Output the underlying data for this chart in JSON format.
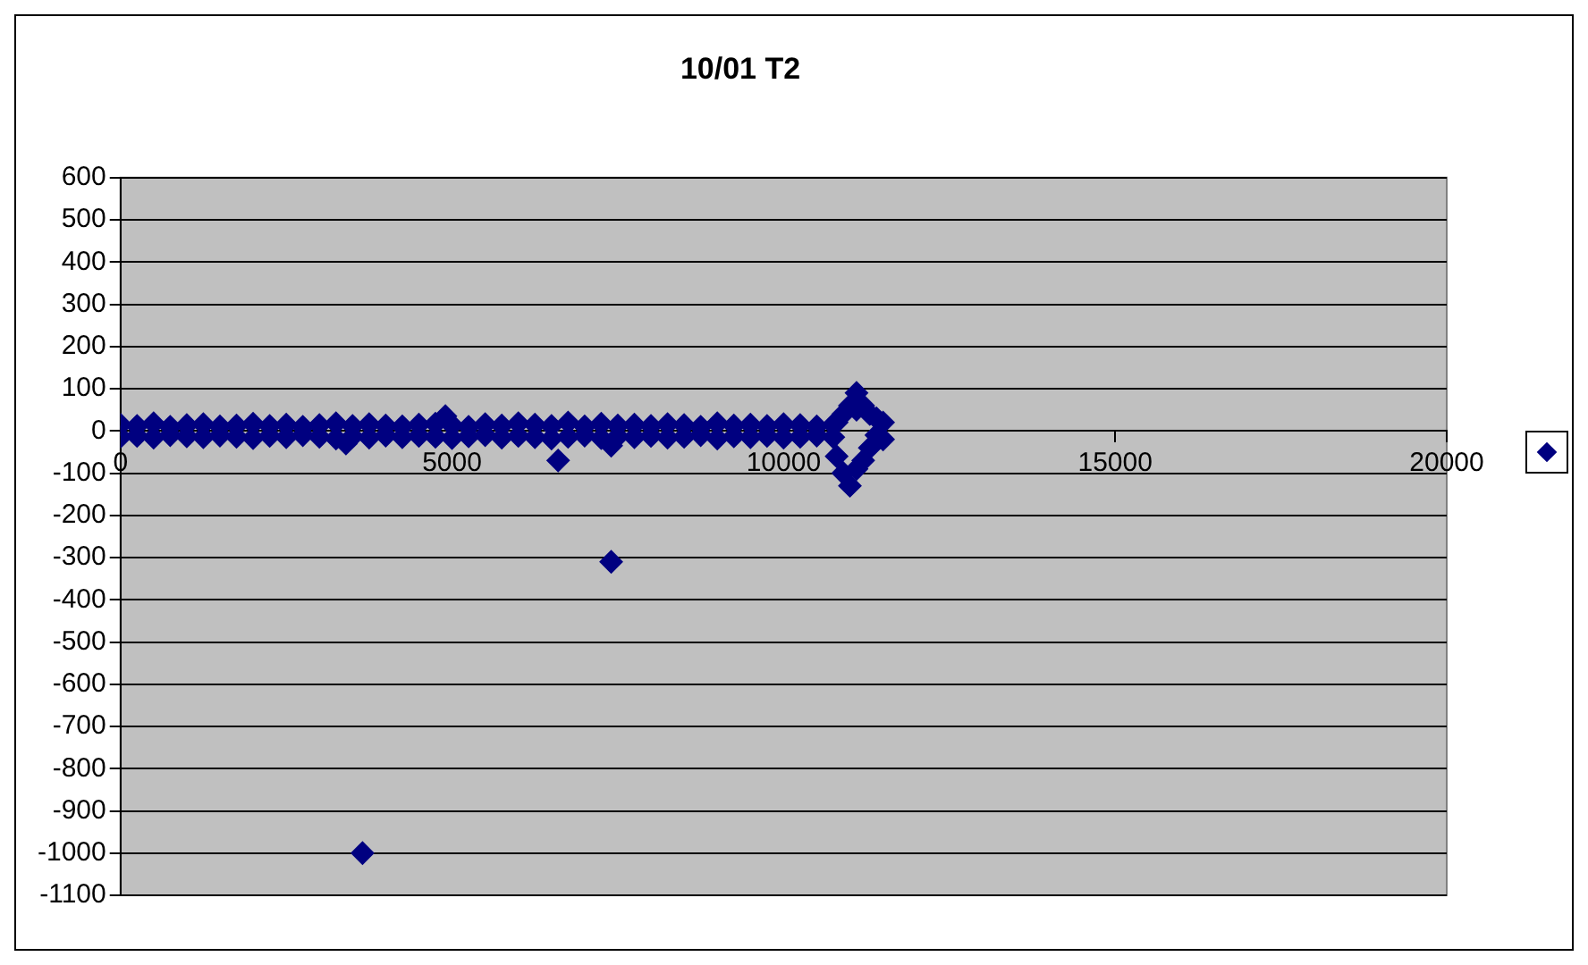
{
  "chart_data": {
    "type": "scatter",
    "title": "10/01 T2",
    "xlim": [
      0,
      20000
    ],
    "xticks": [
      0,
      5000,
      10000,
      15000,
      20000
    ],
    "ylim": [
      -1100,
      600
    ],
    "yticks": [
      -1100,
      -1000,
      -900,
      -800,
      -700,
      -600,
      -500,
      -400,
      -300,
      -200,
      -100,
      0,
      100,
      200,
      300,
      400,
      500,
      600
    ],
    "grid": "y",
    "marker": "diamond",
    "series": [
      {
        "color": "#000080",
        "x": [
          0,
          250,
          500,
          750,
          1000,
          1250,
          1500,
          1750,
          2000,
          2250,
          2500,
          2750,
          3000,
          3250,
          3500,
          3750,
          4000,
          4250,
          4500,
          4750,
          4900,
          5000,
          5250,
          5500,
          5750,
          6000,
          6250,
          6500,
          6750,
          7000,
          7250,
          7500,
          7750,
          8000,
          8250,
          8500,
          8750,
          9000,
          9250,
          9500,
          9750,
          10000,
          10250,
          10500,
          10750,
          0,
          250,
          500,
          750,
          1000,
          1250,
          1500,
          1750,
          2000,
          2250,
          2500,
          2750,
          3000,
          3250,
          3400,
          3500,
          3750,
          4000,
          4250,
          4500,
          4750,
          5000,
          5250,
          5500,
          5750,
          6000,
          6250,
          6500,
          6750,
          7000,
          7250,
          7400,
          7500,
          7750,
          8000,
          8250,
          8500,
          8750,
          9000,
          9250,
          9500,
          9750,
          10000,
          10250,
          10500,
          10750,
          10800,
          10900,
          11000,
          11100,
          11100,
          11200,
          11300,
          11400,
          11500,
          11500,
          11300,
          11200,
          10900,
          11000,
          11400,
          10800,
          11100,
          3650,
          7400,
          6600
        ],
        "values": [
          15,
          12,
          18,
          10,
          14,
          16,
          11,
          13,
          17,
          12,
          15,
          10,
          14,
          18,
          12,
          16,
          13,
          11,
          15,
          17,
          35,
          14,
          10,
          16,
          13,
          18,
          15,
          12,
          20,
          11,
          17,
          13,
          15,
          12,
          16,
          14,
          10,
          18,
          13,
          15,
          12,
          16,
          14,
          11,
          15,
          -14,
          -12,
          -16,
          -10,
          -13,
          -15,
          -11,
          -14,
          -17,
          -12,
          -15,
          -10,
          -14,
          -18,
          -30,
          -13,
          -16,
          -11,
          -15,
          -12,
          -14,
          -17,
          -13,
          -10,
          -16,
          -12,
          -15,
          -18,
          -14,
          -11,
          -17,
          -35,
          -13,
          -15,
          -12,
          -16,
          -14,
          -10,
          -18,
          -13,
          -15,
          -12,
          -16,
          -14,
          -11,
          -15,
          -60,
          -100,
          -130,
          90,
          50,
          60,
          40,
          30,
          20,
          -20,
          -40,
          -70,
          40,
          60,
          -10,
          20,
          -90,
          -1000,
          -310,
          -70
        ]
      }
    ]
  }
}
